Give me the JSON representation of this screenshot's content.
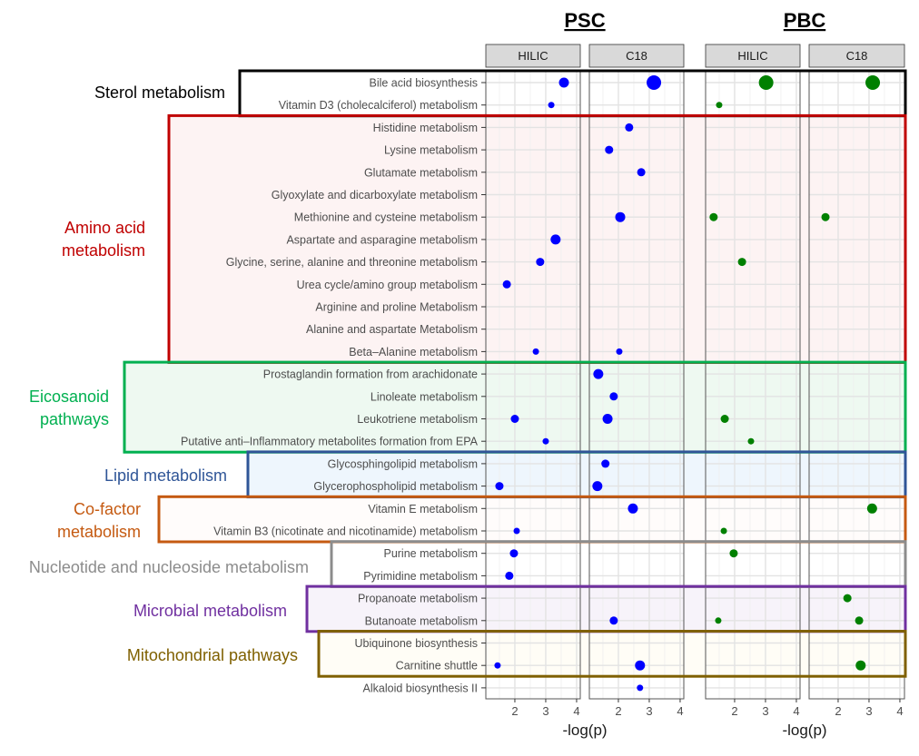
{
  "chart_data": {
    "type": "scatter",
    "xlabel": "-log(p)",
    "xlim": [
      1.06,
      4.12
    ],
    "xticks": [
      "2",
      "3",
      "4"
    ],
    "xtick_values": [
      2,
      3,
      4
    ],
    "grid": true,
    "cohorts": [
      {
        "title": "PSC",
        "point_color": "#0000ff"
      },
      {
        "title": "PBC",
        "point_color": "#008000"
      }
    ],
    "panels": [
      {
        "cohort": 0,
        "strip": "HILIC"
      },
      {
        "cohort": 0,
        "strip": "C18"
      },
      {
        "cohort": 1,
        "strip": "HILIC"
      },
      {
        "cohort": 1,
        "strip": "C18"
      }
    ],
    "groups": [
      {
        "label": [
          "Sterol metabolism"
        ],
        "color": "#000000",
        "fill": "#ffffff",
        "rows": [
          0,
          1
        ]
      },
      {
        "label": [
          "Amino acid",
          "metabolism"
        ],
        "color": "#c00000",
        "fill": "#fdf3f3",
        "rows": [
          2,
          12
        ]
      },
      {
        "label": [
          "Eicosanoid",
          "pathways"
        ],
        "color": "#00b050",
        "fill": "#eef9f1",
        "rows": [
          13,
          16
        ]
      },
      {
        "label": [
          "Lipid metabolism"
        ],
        "color": "#2f5597",
        "fill": "#eef6fd",
        "rows": [
          17,
          18
        ]
      },
      {
        "label": [
          "Co-factor",
          "metabolism"
        ],
        "color": "#c55a11",
        "fill": "#fffcfb",
        "rows": [
          19,
          20
        ]
      },
      {
        "label": [
          "Nucleotide and nucleoside metabolism"
        ],
        "color": "#8c8c8c",
        "fill": "#ffffff",
        "rows": [
          21,
          22
        ]
      },
      {
        "label": [
          "Microbial metabolism"
        ],
        "color": "#7030a0",
        "fill": "#f7f3fa",
        "rows": [
          23,
          24
        ]
      },
      {
        "label": [
          "Mitochondrial pathways"
        ],
        "color": "#7f6000",
        "fill": "#fffdf6",
        "rows": [
          25,
          26
        ]
      }
    ],
    "pathways": [
      "Bile acid biosynthesis",
      "Vitamin D3 (cholecalciferol) metabolism",
      "Histidine metabolism",
      "Lysine metabolism",
      "Glutamate metabolism",
      "Glyoxylate and dicarboxylate metabolism",
      "Methionine and cysteine metabolism",
      "Aspartate and asparagine metabolism",
      "Glycine, serine, alanine and threonine metabolism",
      "Urea cycle/amino group metabolism",
      "Arginine and proline Metabolism",
      "Alanine and aspartate Metabolism",
      "Beta–Alanine metabolism",
      "Prostaglandin formation from arachidonate",
      "Linoleate metabolism",
      "Leukotriene metabolism",
      "Putative anti–Inflammatory metabolites formation from EPA",
      "Glycosphingolipid metabolism",
      "Glycerophospholipid metabolism",
      "Vitamin E metabolism",
      "Vitamin B3 (nicotinate and nicotinamide) metabolism",
      "Purine metabolism",
      "Pyrimidine metabolism",
      "Propanoate metabolism",
      "Butanoate metabolism",
      "Ubiquinone biosynthesis",
      "Carnitine shuttle",
      "Alkaloid biosynthesis II"
    ],
    "points": [
      [
        [
          0,
          3.59,
          3
        ],
        [
          1,
          3.18,
          1
        ],
        [
          7,
          3.32,
          3
        ],
        [
          8,
          2.82,
          2
        ],
        [
          9,
          1.74,
          2
        ],
        [
          12,
          2.68,
          1
        ],
        [
          15,
          2.0,
          2
        ],
        [
          16,
          3.0,
          1
        ],
        [
          18,
          1.5,
          2
        ],
        [
          20,
          2.06,
          1
        ],
        [
          21,
          1.97,
          2
        ],
        [
          22,
          1.82,
          2
        ],
        [
          26,
          1.44,
          1
        ]
      ],
      [
        [
          0,
          3.15,
          4
        ],
        [
          2,
          2.35,
          2
        ],
        [
          3,
          1.7,
          2
        ],
        [
          4,
          2.74,
          2
        ],
        [
          6,
          2.06,
          3
        ],
        [
          12,
          2.03,
          1
        ],
        [
          13,
          1.35,
          3
        ],
        [
          14,
          1.85,
          2
        ],
        [
          15,
          1.65,
          3
        ],
        [
          17,
          1.58,
          2
        ],
        [
          18,
          1.32,
          3
        ],
        [
          19,
          2.47,
          3
        ],
        [
          24,
          1.85,
          2
        ],
        [
          26,
          2.7,
          3
        ],
        [
          27,
          2.7,
          1
        ]
      ],
      [
        [
          0,
          3.02,
          4
        ],
        [
          1,
          1.5,
          1
        ],
        [
          6,
          1.32,
          2
        ],
        [
          8,
          2.24,
          2
        ],
        [
          15,
          1.68,
          2
        ],
        [
          16,
          2.53,
          1
        ],
        [
          20,
          1.65,
          1
        ],
        [
          21,
          1.97,
          2
        ],
        [
          24,
          1.47,
          1
        ]
      ],
      [
        [
          0,
          3.12,
          4
        ],
        [
          6,
          1.59,
          2
        ],
        [
          19,
          3.1,
          3
        ],
        [
          23,
          2.3,
          2
        ],
        [
          24,
          2.68,
          2
        ],
        [
          26,
          2.73,
          3
        ]
      ]
    ]
  }
}
